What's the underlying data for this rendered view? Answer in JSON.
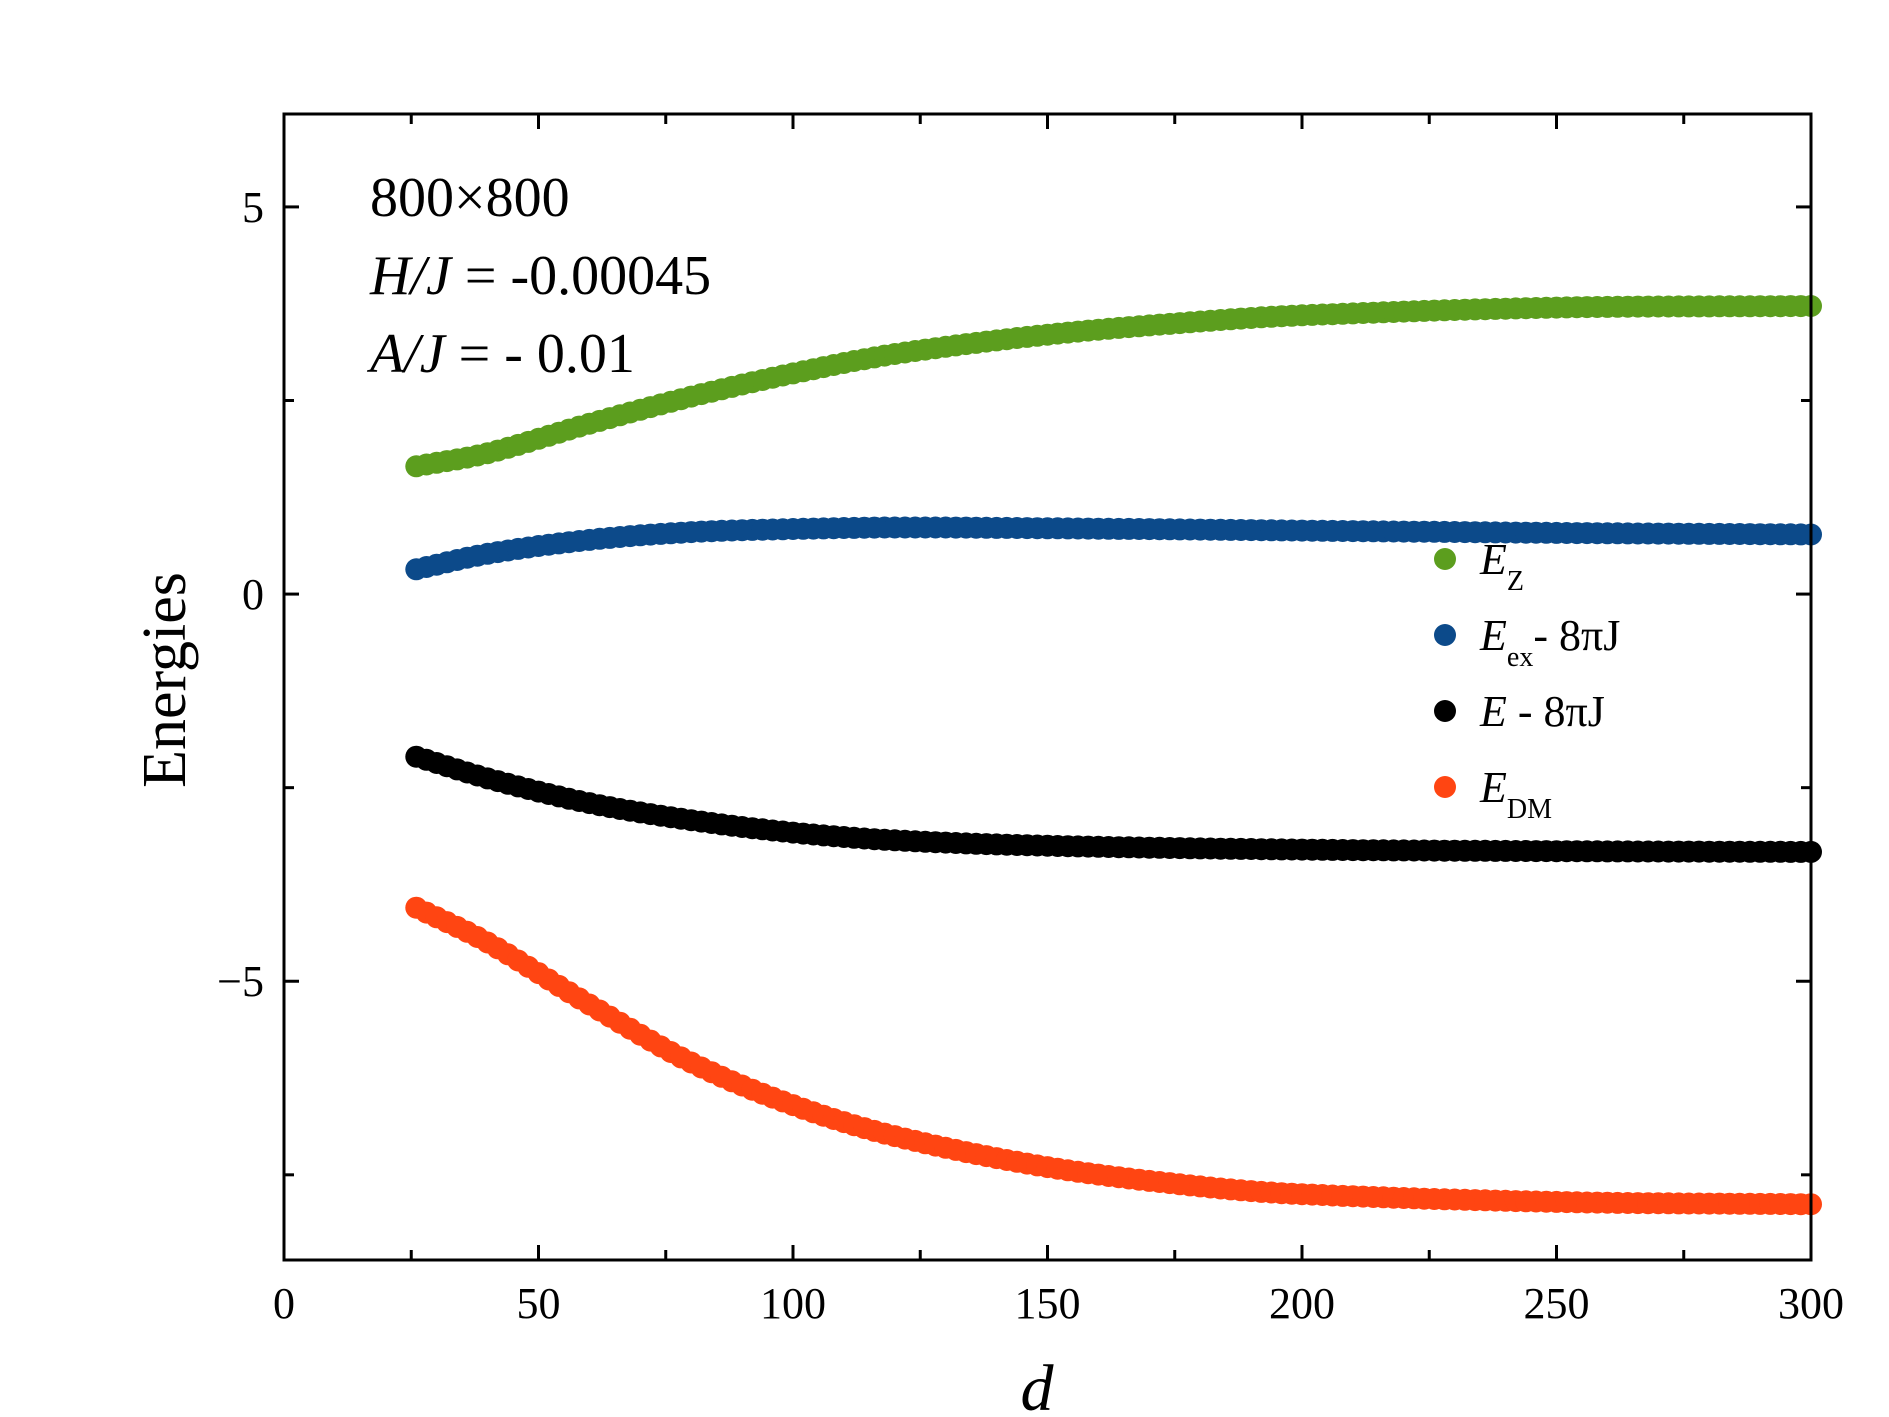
{
  "chart_data": {
    "type": "scatter",
    "title": "",
    "xlabel": "d",
    "ylabel": "Energies",
    "xlim": [
      0,
      300
    ],
    "ylim": [
      -8.6,
      6.2
    ],
    "x_ticks": [
      0,
      50,
      100,
      150,
      200,
      250,
      300
    ],
    "x_tick_labels": [
      "0",
      "50",
      "100",
      "150",
      "200",
      "250",
      "300"
    ],
    "y_ticks": [
      -5,
      0,
      5
    ],
    "y_tick_labels": [
      "−5",
      "0",
      "5"
    ],
    "y_minor_ticks": [
      -7.5,
      -2.5,
      2.5
    ],
    "x_minor_ticks": [
      25,
      75,
      125,
      175,
      225,
      275
    ],
    "grid": false,
    "legend_position": "right",
    "annotations": {
      "line1": "800×800",
      "line2_var": "H/J",
      "line2_rest": " = -0.00045",
      "line3_var": "A/J",
      "line3_rest": " = - 0.01"
    },
    "x_range": {
      "start": 26,
      "end": 300,
      "step": 2
    },
    "series": [
      {
        "name": "E_Z",
        "legend": {
          "main": "E",
          "sub": "Z",
          "rest": ""
        },
        "color": "#5c9e1e",
        "anchors": [
          [
            26,
            1.65
          ],
          [
            40,
            1.82
          ],
          [
            60,
            2.2
          ],
          [
            80,
            2.55
          ],
          [
            100,
            2.85
          ],
          [
            120,
            3.1
          ],
          [
            150,
            3.35
          ],
          [
            180,
            3.52
          ],
          [
            200,
            3.6
          ],
          [
            250,
            3.7
          ],
          [
            300,
            3.72
          ]
        ]
      },
      {
        "name": "E_ex - 8πJ",
        "legend": {
          "main": "E",
          "sub": "ex",
          "rest": "-  8πJ"
        },
        "color": "#0c4a8a",
        "anchors": [
          [
            26,
            0.32
          ],
          [
            40,
            0.52
          ],
          [
            60,
            0.7
          ],
          [
            80,
            0.8
          ],
          [
            100,
            0.84
          ],
          [
            120,
            0.86
          ],
          [
            150,
            0.85
          ],
          [
            200,
            0.82
          ],
          [
            250,
            0.79
          ],
          [
            300,
            0.77
          ]
        ]
      },
      {
        "name": "E - 8πJ",
        "legend": {
          "main": "E",
          "sub": "",
          "rest": " -  8πJ"
        },
        "color": "#000000",
        "anchors": [
          [
            26,
            -2.1
          ],
          [
            40,
            -2.38
          ],
          [
            60,
            -2.7
          ],
          [
            80,
            -2.92
          ],
          [
            100,
            -3.08
          ],
          [
            120,
            -3.18
          ],
          [
            150,
            -3.25
          ],
          [
            200,
            -3.3
          ],
          [
            250,
            -3.32
          ],
          [
            300,
            -3.33
          ]
        ]
      },
      {
        "name": "E_DM",
        "legend": {
          "main": "E",
          "sub": "DM",
          "rest": ""
        },
        "color": "#ff4512",
        "anchors": [
          [
            26,
            -4.05
          ],
          [
            40,
            -4.5
          ],
          [
            60,
            -5.3
          ],
          [
            80,
            -6.05
          ],
          [
            100,
            -6.6
          ],
          [
            120,
            -7.0
          ],
          [
            150,
            -7.4
          ],
          [
            180,
            -7.65
          ],
          [
            200,
            -7.75
          ],
          [
            250,
            -7.85
          ],
          [
            300,
            -7.88
          ]
        ]
      }
    ]
  }
}
